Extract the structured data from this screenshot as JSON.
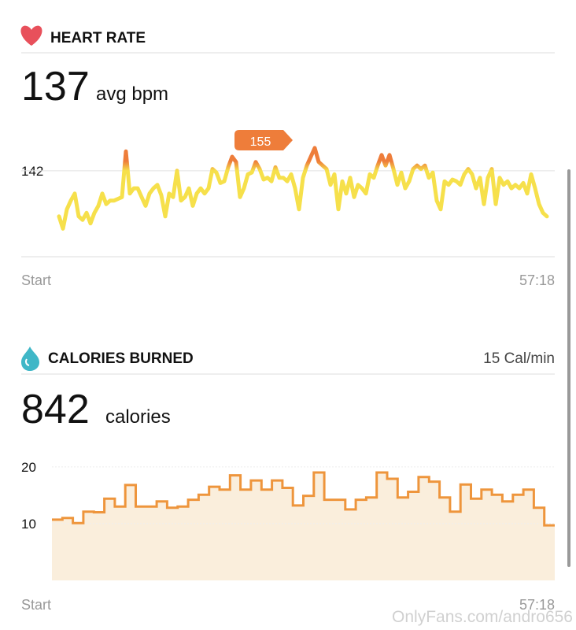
{
  "chart_data": [
    {
      "type": "line",
      "title": "HEART RATE",
      "headline": 137,
      "headline_unit": "avg bpm",
      "annotation": 155,
      "x_labels": [
        "Start",
        "57:18"
      ],
      "ylim": [
        93,
        172
      ],
      "yticks": [
        142
      ],
      "grid": true,
      "color": "#f6e04b",
      "high_color": "#ee7d3a",
      "values": [
        116,
        109,
        120,
        125,
        129,
        116,
        114,
        118,
        112,
        118,
        122,
        129,
        123,
        125,
        125,
        126,
        127,
        153,
        129,
        132,
        132,
        127,
        122,
        129,
        132,
        134,
        128,
        116,
        129,
        127,
        142,
        125,
        127,
        132,
        122,
        129,
        132,
        129,
        132,
        143,
        141,
        135,
        136,
        144,
        150,
        147,
        127,
        132,
        140,
        141,
        147,
        143,
        137,
        138,
        136,
        144,
        138,
        138,
        136,
        140,
        132,
        120,
        138,
        145,
        150,
        155,
        147,
        145,
        143,
        134,
        140,
        120,
        136,
        129,
        138,
        127,
        134,
        132,
        129,
        140,
        138,
        145,
        151,
        145,
        151,
        143,
        134,
        141,
        132,
        136,
        143,
        145,
        143,
        145,
        138,
        141,
        125,
        120,
        136,
        134,
        137,
        136,
        134,
        140,
        143,
        140,
        132,
        138,
        123,
        138,
        143,
        123,
        138,
        134,
        136,
        132,
        134,
        132,
        135,
        129,
        140,
        132,
        123,
        118,
        116
      ]
    },
    {
      "type": "step",
      "title": "CALORIES BURNED",
      "rate": "15 Cal/min",
      "headline": 842,
      "headline_unit": "calories",
      "x_labels": [
        "Start",
        "57:18"
      ],
      "ylim": [
        0,
        24
      ],
      "yticks": [
        10,
        20
      ],
      "grid": true,
      "color": "#ee953c",
      "fill": "#faeedc",
      "values": [
        10.7,
        11,
        10.1,
        12.1,
        12,
        14.4,
        13,
        16.8,
        13,
        13,
        13.9,
        12.8,
        13,
        14.2,
        15.1,
        16.5,
        16,
        18.5,
        16,
        17.6,
        16,
        17.6,
        16.3,
        13.2,
        14.9,
        19,
        14.2,
        14.2,
        12.5,
        14.2,
        14.6,
        19,
        17.9,
        14.6,
        15.6,
        18.2,
        17.4,
        14.6,
        12.1,
        16.9,
        14.4,
        16,
        15.1,
        13.9,
        15.1,
        16,
        12.8,
        9.7
      ]
    }
  ],
  "watermark": "OnlyFans.com/andro656"
}
